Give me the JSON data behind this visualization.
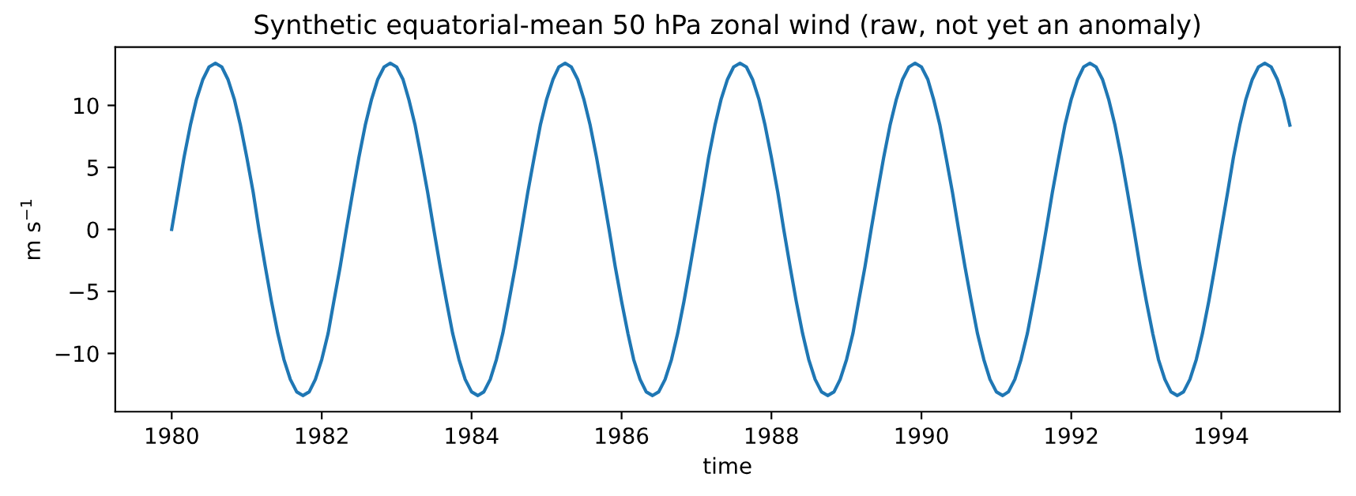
{
  "chart_data": {
    "type": "line",
    "title": "Synthetic equatorial-mean 50 hPa zonal wind (raw, not yet an anomaly)",
    "xlabel": "time",
    "ylabel": "m s$^{−1}$",
    "x": [
      "1980-01",
      "1980-02",
      "1980-03",
      "1980-04",
      "1980-05",
      "1980-06",
      "1980-07",
      "1980-08",
      "1980-09",
      "1980-10",
      "1980-11",
      "1980-12",
      "1981-01",
      "1981-02",
      "1981-03",
      "1981-04",
      "1981-05",
      "1981-06",
      "1981-07",
      "1981-08",
      "1981-09",
      "1981-10",
      "1981-11",
      "1981-12",
      "1982-01",
      "1982-02",
      "1982-03",
      "1982-04",
      "1982-05",
      "1982-06",
      "1982-07",
      "1982-08",
      "1982-09",
      "1982-10",
      "1982-11",
      "1982-12",
      "1983-01",
      "1983-02",
      "1983-03",
      "1983-04",
      "1983-05",
      "1983-06",
      "1983-07",
      "1983-08",
      "1983-09",
      "1983-10",
      "1983-11",
      "1983-12",
      "1984-01",
      "1984-02",
      "1984-03",
      "1984-04",
      "1984-05",
      "1984-06",
      "1984-07",
      "1984-08",
      "1984-09",
      "1984-10",
      "1984-11",
      "1984-12",
      "1985-01",
      "1985-02",
      "1985-03",
      "1985-04",
      "1985-05",
      "1985-06",
      "1985-07",
      "1985-08",
      "1985-09",
      "1985-10",
      "1985-11",
      "1985-12",
      "1986-01",
      "1986-02",
      "1986-03",
      "1986-04",
      "1986-05",
      "1986-06",
      "1986-07",
      "1986-08",
      "1986-09",
      "1986-10",
      "1986-11",
      "1986-12",
      "1987-01",
      "1987-02",
      "1987-03",
      "1987-04",
      "1987-05",
      "1987-06",
      "1987-07",
      "1987-08",
      "1987-09",
      "1987-10",
      "1987-11",
      "1987-12",
      "1988-01",
      "1988-02",
      "1988-03",
      "1988-04",
      "1988-05",
      "1988-06",
      "1988-07",
      "1988-08",
      "1988-09",
      "1988-10",
      "1988-11",
      "1988-12",
      "1989-01",
      "1989-02",
      "1989-03",
      "1989-04",
      "1989-05",
      "1989-06",
      "1989-07",
      "1989-08",
      "1989-09",
      "1989-10",
      "1989-11",
      "1989-12",
      "1990-01",
      "1990-02",
      "1990-03",
      "1990-04",
      "1990-05",
      "1990-06",
      "1990-07",
      "1990-08",
      "1990-09",
      "1990-10",
      "1990-11",
      "1990-12",
      "1991-01",
      "1991-02",
      "1991-03",
      "1991-04",
      "1991-05",
      "1991-06",
      "1991-07",
      "1991-08",
      "1991-09",
      "1991-10",
      "1991-11",
      "1991-12",
      "1992-01",
      "1992-02",
      "1992-03",
      "1992-04",
      "1992-05",
      "1992-06",
      "1992-07",
      "1992-08",
      "1992-09",
      "1992-10",
      "1992-11",
      "1992-12",
      "1993-01",
      "1993-02",
      "1993-03",
      "1993-04",
      "1993-05",
      "1993-06",
      "1993-07",
      "1993-08",
      "1993-09",
      "1993-10",
      "1993-11",
      "1993-12",
      "1994-01",
      "1994-02",
      "1994-03",
      "1994-04",
      "1994-05",
      "1994-06",
      "1994-07",
      "1994-08",
      "1994-09",
      "1994-10",
      "1994-11",
      "1994-12"
    ],
    "series": [
      {
        "color": "#1f77b4",
        "values": [
          0,
          3.0,
          5.8,
          8.4,
          10.5,
          12.1,
          13.1,
          13.4,
          13.1,
          12.1,
          10.5,
          8.4,
          5.8,
          3.0,
          0,
          -3.0,
          -5.8,
          -8.4,
          -10.5,
          -12.1,
          -13.1,
          -13.4,
          -13.1,
          -12.1,
          -10.5,
          -8.4,
          -5.8,
          -3.0,
          0,
          3.0,
          5.8,
          8.4,
          10.5,
          12.1,
          13.1,
          13.4,
          13.1,
          12.1,
          10.5,
          8.4,
          5.8,
          3.0,
          0,
          -3.0,
          -5.8,
          -8.4,
          -10.5,
          -12.1,
          -13.1,
          -13.4,
          -13.1,
          -12.1,
          -10.5,
          -8.4,
          -5.8,
          -3.0,
          0,
          3.0,
          5.8,
          8.4,
          10.5,
          12.1,
          13.1,
          13.4,
          13.1,
          12.1,
          10.5,
          8.4,
          5.8,
          3.0,
          0,
          -3.0,
          -5.8,
          -8.4,
          -10.5,
          -12.1,
          -13.1,
          -13.4,
          -13.1,
          -12.1,
          -10.5,
          -8.4,
          -5.8,
          -3.0,
          0,
          3.0,
          5.8,
          8.4,
          10.5,
          12.1,
          13.1,
          13.4,
          13.1,
          12.1,
          10.5,
          8.4,
          5.8,
          3.0,
          0,
          -3.0,
          -5.8,
          -8.4,
          -10.5,
          -12.1,
          -13.1,
          -13.4,
          -13.1,
          -12.1,
          -10.5,
          -8.4,
          -5.8,
          -3.0,
          0,
          3.0,
          5.8,
          8.4,
          10.5,
          12.1,
          13.1,
          13.4,
          13.1,
          12.1,
          10.5,
          8.4,
          5.8,
          3.0,
          0,
          -3.0,
          -5.8,
          -8.4,
          -10.5,
          -12.1,
          -13.1,
          -13.4,
          -13.1,
          -12.1,
          -10.5,
          -8.4,
          -5.8,
          -3.0,
          0,
          3.0,
          5.8,
          8.4,
          10.5,
          12.1,
          13.1,
          13.4,
          13.1,
          12.1,
          10.5,
          8.4,
          5.8,
          3.0,
          0,
          -3.0,
          -5.8,
          -8.4,
          -10.5,
          -12.1,
          -13.1,
          -13.4,
          -13.1,
          -12.1,
          -10.5,
          -8.4,
          -5.8,
          -3.0,
          0,
          3.0,
          5.8,
          8.4,
          10.5,
          12.1,
          13.1,
          13.4,
          13.1,
          12.1,
          10.5,
          8.4
        ]
      }
    ],
    "xlim": [
      "1979-04",
      "1995-08"
    ],
    "xticks": [
      "1980",
      "1982",
      "1984",
      "1986",
      "1988",
      "1990",
      "1992",
      "1994"
    ],
    "ylim": [
      -14.7,
      14.7
    ],
    "yticks": [
      -10,
      -5,
      0,
      5,
      10
    ],
    "grid": false,
    "marker": "none",
    "line_style": "solid"
  }
}
